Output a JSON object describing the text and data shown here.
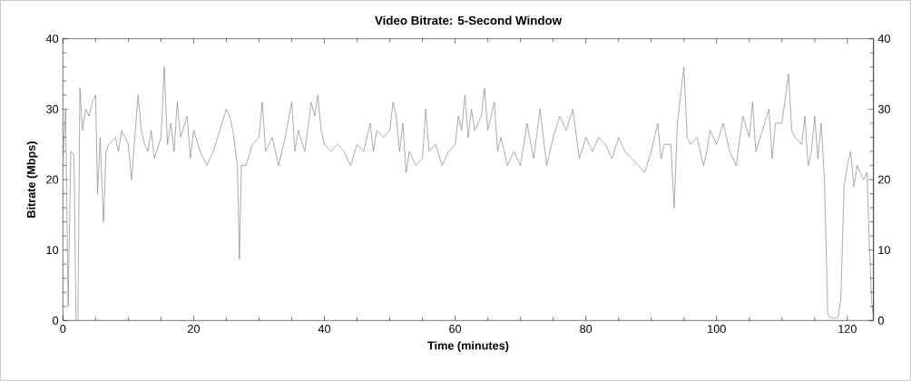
{
  "chart_data": {
    "type": "line",
    "title": "Video Bitrate: 5-Second Window",
    "xlabel": "Time (minutes)",
    "ylabel": "Bitrate (Mbps)",
    "x": [
      0,
      0.4,
      0.8,
      1.2,
      1.7,
      2.0,
      2.3,
      2.6,
      3,
      3.5,
      4,
      4.5,
      5,
      5.3,
      5.7,
      6.2,
      6.6,
      7,
      8,
      8.5,
      9,
      10,
      10.5,
      11,
      11.5,
      12,
      12.5,
      13,
      13.5,
      14,
      15,
      15.5,
      16,
      16.5,
      17,
      17.5,
      18,
      19,
      19.5,
      20,
      21,
      22,
      22.5,
      23,
      24,
      25,
      25.5,
      26,
      26.7,
      27,
      27.3,
      28,
      29,
      30,
      30.5,
      31,
      32,
      33,
      34,
      35,
      35.5,
      36,
      37,
      38,
      38.5,
      39,
      39.5,
      40,
      41,
      42,
      43,
      44,
      45,
      46,
      47,
      47.5,
      48,
      49,
      50,
      50.5,
      51,
      51.5,
      52,
      52.5,
      53,
      54,
      55,
      55.5,
      56,
      57,
      58,
      59,
      60,
      60.5,
      61,
      61.5,
      62,
      62.5,
      63,
      64,
      64.5,
      65,
      66,
      66.5,
      67,
      68,
      69,
      70,
      71,
      72,
      73,
      74,
      75,
      76,
      77,
      78,
      79,
      80,
      81,
      82,
      83,
      84,
      85,
      86,
      87,
      88,
      89,
      90,
      91,
      91.5,
      92,
      93,
      93.5,
      94,
      95,
      95.5,
      96,
      97,
      98,
      98.5,
      99,
      100,
      101,
      102,
      103,
      104,
      105,
      105.5,
      106,
      107,
      108,
      108.5,
      109,
      110,
      111,
      111.5,
      112,
      113,
      113.5,
      114,
      114.5,
      115,
      115.5,
      116,
      116.5,
      117,
      117.3,
      118,
      118.6,
      119,
      119.5,
      120,
      120.5,
      121,
      121.5,
      122,
      122.5,
      123,
      123.4,
      123.7,
      124
    ],
    "series": [
      {
        "color": "#808080",
        "values": [
          22,
          30,
          2,
          24,
          23.5,
          0,
          0,
          33,
          27,
          30,
          29,
          31,
          32,
          18,
          26,
          14,
          24,
          25,
          26,
          24,
          27,
          25,
          20,
          26,
          32,
          27,
          25,
          24,
          27,
          23,
          26,
          36,
          25,
          28,
          24,
          31,
          26,
          29,
          23,
          27,
          24,
          22,
          23,
          24,
          27,
          30,
          29,
          27,
          22,
          8.7,
          22,
          22,
          25,
          26,
          31,
          24,
          26,
          22,
          26,
          31,
          24,
          27,
          24,
          31,
          29,
          32,
          27,
          25,
          24,
          25,
          24,
          22,
          25,
          24,
          28,
          24,
          27,
          26,
          27,
          31,
          29,
          24,
          28,
          21,
          24,
          22,
          23,
          30,
          24,
          25,
          22,
          24,
          25,
          29,
          27,
          32,
          26,
          30,
          27,
          29,
          33,
          27,
          31,
          24,
          26,
          22,
          24,
          22,
          28,
          23,
          30,
          22,
          26,
          29,
          27,
          30,
          23,
          26,
          24,
          26,
          25,
          23,
          26,
          24,
          23,
          22,
          21,
          24,
          28,
          23,
          25,
          25,
          16,
          28,
          36,
          26,
          25,
          26,
          22,
          24,
          27,
          25,
          28,
          24,
          22,
          29,
          26,
          31,
          24,
          27,
          30,
          23,
          28,
          28,
          35,
          27,
          26,
          25,
          29,
          22,
          24,
          29,
          23,
          28,
          20,
          1,
          0.5,
          0.3,
          0.5,
          3,
          19,
          22,
          24,
          19,
          22,
          21,
          20,
          21,
          10,
          3,
          0
        ]
      }
    ],
    "xlim": [
      0,
      124
    ],
    "xticks": [
      0,
      20,
      40,
      60,
      80,
      100,
      120
    ],
    "ylim": [
      0,
      40
    ],
    "yticks": [
      0,
      10,
      20,
      30,
      40
    ],
    "y2lim": [
      0,
      40
    ],
    "y2ticks": [
      0,
      10,
      20,
      30,
      40
    ],
    "grid": false,
    "legend": false,
    "marker": "none",
    "line_style": "solid"
  }
}
